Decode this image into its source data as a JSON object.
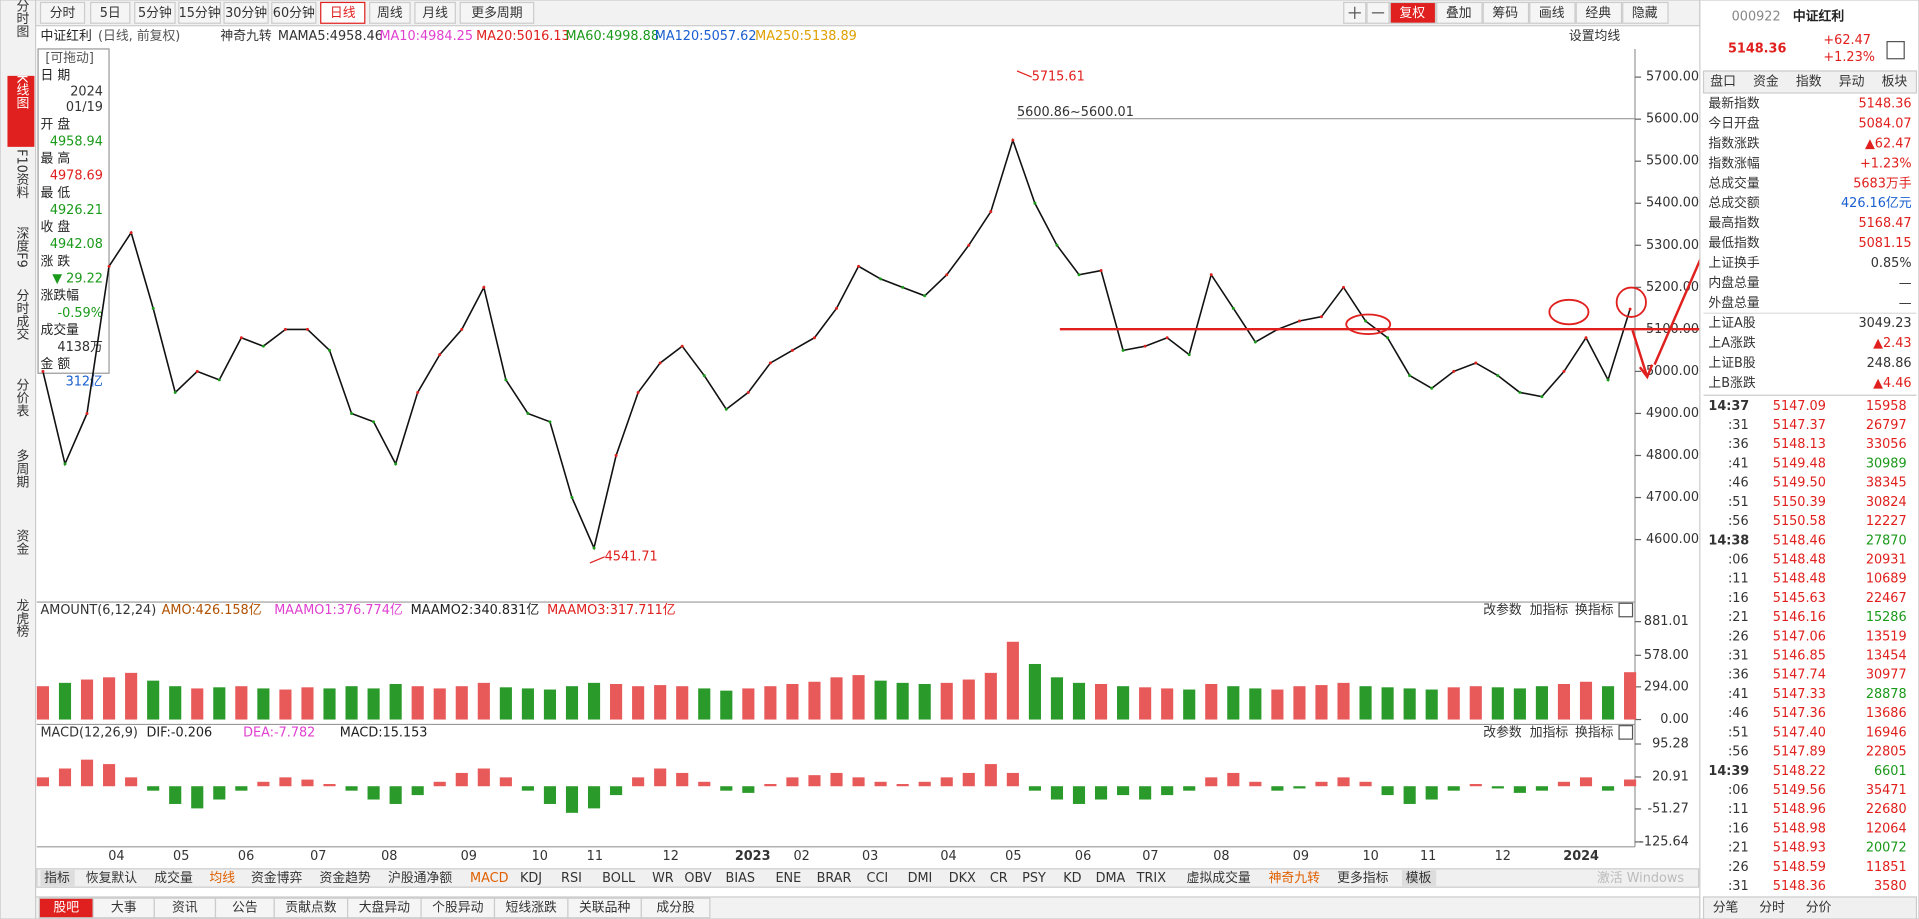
{
  "nav": [
    "分时图",
    "K线图",
    "F10资料",
    "深度F9",
    "分时成交",
    "分价表",
    "多周期",
    "资金",
    "龙虎榜"
  ],
  "periods": [
    "分时",
    "5日",
    "5分钟",
    "15分钟",
    "30分钟",
    "60分钟",
    "日线",
    "周线",
    "月线",
    "更多周期"
  ],
  "tools": [
    "复权",
    "叠加",
    "筹码",
    "画线",
    "经典",
    "隐藏"
  ],
  "legend": {
    "name": "中证红利",
    "mode": "(日线, 前复权)",
    "nine": "神奇九转",
    "ma": "MA",
    "items": [
      "MA5:4958.46",
      "MA10:4984.25",
      "MA20:5016.13",
      "MA60:4998.88",
      "MA120:5057.62",
      "MA250:5138.89"
    ],
    "setting": "设置均线"
  },
  "info": {
    "drag": "[可拖动]",
    "rows": [
      [
        "日  期",
        "2024",
        "01/19"
      ],
      [
        "开  盘",
        "4958.94"
      ],
      [
        "最  高",
        "4978.69"
      ],
      [
        "最  低",
        "4926.21"
      ],
      [
        "收  盘",
        "4942.08"
      ],
      [
        "涨  跌",
        "▼ 29.22"
      ],
      [
        "涨跌幅",
        "-0.59%"
      ],
      [
        "成交量",
        "4138万"
      ],
      [
        "金  额",
        "312亿"
      ]
    ]
  },
  "main_chart": {
    "type": "line",
    "ylim": [
      4463,
      5767
    ],
    "yticks": [
      {
        "value": 5700,
        "label": "5700.00"
      },
      {
        "value": 5600,
        "label": "5600.00"
      },
      {
        "value": 5500,
        "label": "5500.00"
      },
      {
        "value": 5400,
        "label": "5400.00"
      },
      {
        "value": 5300,
        "label": "5300.00"
      },
      {
        "value": 5200,
        "label": "5200.00"
      },
      {
        "value": 5100,
        "label": "5100.00"
      },
      {
        "value": 5000,
        "label": "5000.00"
      },
      {
        "value": 4900,
        "label": "4900.00"
      },
      {
        "value": 4800,
        "label": "4800.00"
      },
      {
        "value": 4700,
        "label": "4700.00"
      },
      {
        "value": 4600,
        "label": "4600.00"
      }
    ],
    "values": [
      5000,
      4780,
      4900,
      5250,
      5330,
      5150,
      4950,
      5000,
      4980,
      5080,
      5060,
      5100,
      5100,
      5050,
      4900,
      4880,
      4780,
      4950,
      5040,
      5100,
      5200,
      4980,
      4900,
      4880,
      4700,
      4580,
      4800,
      4950,
      5020,
      5060,
      4990,
      4910,
      4950,
      5020,
      5050,
      5080,
      5150,
      5250,
      5220,
      5200,
      5180,
      5230,
      5300,
      5380,
      5550,
      5400,
      5300,
      5230,
      5240,
      5050,
      5060,
      5080,
      5040,
      5230,
      5150,
      5070,
      5100,
      5120,
      5130,
      5200,
      5120,
      5080,
      4990,
      4960,
      5000,
      5020,
      4990,
      4950,
      4940,
      5000,
      5080,
      4980,
      5148.36
    ],
    "annotations": {
      "high": "5715.61",
      "low": "4541.71",
      "range": "5600.86~5600.01"
    }
  },
  "x_labels": [
    "04",
    "05",
    "06",
    "07",
    "08",
    "09",
    "10",
    "11",
    "12",
    "2023",
    "02",
    "03",
    "04",
    "05",
    "06",
    "07",
    "08",
    "09",
    "10",
    "11",
    "12",
    "2024"
  ],
  "volume_chart": {
    "type": "bar",
    "title": "AMOUNT(6,12,24)",
    "items": [
      "AMO:426.158亿",
      "MAAMO1:376.774亿",
      "MAAMO2:340.831亿",
      "MAAMO3:317.711亿"
    ],
    "ylim": [
      0,
      881.01
    ],
    "yticks": [
      881.01,
      {
        "value": 578,
        "label": "578.00"
      },
      {
        "value": 294,
        "label": "294.00"
      },
      {
        "value": 0,
        "label": "0.00"
      }
    ],
    "values": [
      300,
      330,
      360,
      380,
      420,
      350,
      300,
      280,
      290,
      300,
      280,
      270,
      290,
      280,
      300,
      280,
      320,
      300,
      280,
      300,
      330,
      290,
      280,
      270,
      300,
      330,
      320,
      300,
      310,
      300,
      280,
      260,
      280,
      300,
      320,
      340,
      380,
      400,
      350,
      330,
      320,
      330,
      360,
      420,
      700,
      500,
      380,
      330,
      320,
      300,
      290,
      280,
      270,
      320,
      300,
      280,
      270,
      300,
      310,
      330,
      300,
      290,
      280,
      270,
      290,
      300,
      290,
      280,
      300,
      320,
      340,
      300,
      426.158
    ]
  },
  "macd_chart": {
    "type": "bar",
    "title": "MACD(12,26,9)",
    "items": [
      "DIF:-0.206",
      "DEA:-7.782",
      "MACD:15.153"
    ],
    "ylim": [
      -125.64,
      95.28
    ],
    "yticks": [
      95.28,
      20.91,
      -51.27,
      -125.64
    ],
    "values": [
      20,
      40,
      60,
      50,
      20,
      -10,
      -40,
      -50,
      -30,
      -10,
      10,
      20,
      15,
      5,
      -10,
      -30,
      -40,
      -20,
      10,
      30,
      40,
      20,
      -10,
      -40,
      -60,
      -50,
      -20,
      20,
      40,
      30,
      10,
      -10,
      -15,
      5,
      20,
      25,
      30,
      20,
      10,
      5,
      10,
      20,
      30,
      50,
      30,
      -10,
      -30,
      -40,
      -30,
      -20,
      -30,
      -20,
      -10,
      20,
      30,
      10,
      -10,
      -5,
      10,
      20,
      10,
      -20,
      -40,
      -30,
      -10,
      5,
      -5,
      -15,
      -10,
      10,
      20,
      -10,
      15.153
    ]
  },
  "panel_buttons": [
    "改参数",
    "加指标",
    "换指标"
  ],
  "indicator_tabs": [
    "指标",
    "恢复默认",
    "成交量",
    "均线",
    "资金博弈",
    "资金趋势",
    "沪股通净额",
    "MACD",
    "KDJ",
    "RSI",
    "BOLL",
    "WR",
    "OBV",
    "BIAS",
    "ENE",
    "BRAR",
    "CCI",
    "DMI",
    "DKX",
    "CR",
    "PSY",
    "KD",
    "DMA",
    "TRIX",
    "虚拟成交量",
    "神奇九转",
    "更多指标",
    "模板"
  ],
  "bottom_tabs": [
    "股吧",
    "大事",
    "资讯",
    "公告",
    "贡献点数",
    "大盘异动",
    "个股异动",
    "短线涨跌",
    "关联品种",
    "成分股"
  ],
  "quote": {
    "code": "000922",
    "name": "中证红利",
    "price": "5148.36",
    "change": "+62.47",
    "pct": "+1.23%",
    "tabs": [
      "盘口",
      "资金",
      "指数",
      "异动",
      "板块"
    ],
    "rows": [
      [
        "最新指数",
        "5148.36"
      ],
      [
        "今日开盘",
        "5084.07"
      ],
      [
        "指数涨跌",
        "▲62.47"
      ],
      [
        "指数涨幅",
        "+1.23%"
      ],
      [
        "总成交量",
        "5683万手"
      ],
      [
        "总成交额",
        "426.16亿元"
      ],
      [
        "最高指数",
        "5168.47"
      ],
      [
        "最低指数",
        "5081.15"
      ],
      [
        "上证换手",
        "0.85%"
      ],
      [
        "内盘总量",
        "—"
      ],
      [
        "外盘总量",
        "—"
      ],
      [
        "上证A股",
        "3049.23"
      ],
      [
        "上A涨跌",
        "▲2.43"
      ],
      [
        "上证B股",
        "248.86"
      ],
      [
        "上B涨跌",
        "▲4.46"
      ]
    ],
    "ticks": [
      [
        "14:37",
        "5147.09",
        "15958"
      ],
      [
        ":31",
        "5147.37",
        "26797"
      ],
      [
        ":36",
        "5148.13",
        "33056"
      ],
      [
        ":41",
        "5149.48",
        "30989"
      ],
      [
        ":46",
        "5149.50",
        "38345"
      ],
      [
        ":51",
        "5150.39",
        "30824"
      ],
      [
        ":56",
        "5150.58",
        "12227"
      ],
      [
        "14:38",
        "5148.46",
        "27870"
      ],
      [
        ":06",
        "5148.48",
        "20931"
      ],
      [
        ":11",
        "5148.48",
        "10689"
      ],
      [
        ":16",
        "5145.63",
        "22467"
      ],
      [
        ":21",
        "5146.16",
        "15286"
      ],
      [
        ":26",
        "5147.06",
        "13519"
      ],
      [
        ":31",
        "5146.85",
        "13454"
      ],
      [
        ":36",
        "5147.74",
        "30977"
      ],
      [
        ":41",
        "5147.33",
        "28878"
      ],
      [
        ":46",
        "5147.36",
        "13686"
      ],
      [
        ":51",
        "5147.40",
        "16946"
      ],
      [
        ":56",
        "5147.89",
        "22805"
      ],
      [
        "14:39",
        "5148.22",
        "6601"
      ],
      [
        ":06",
        "5149.56",
        "35471"
      ],
      [
        ":11",
        "5148.96",
        "22680"
      ],
      [
        ":16",
        "5148.98",
        "12064"
      ],
      [
        ":21",
        "5148.93",
        "20072"
      ],
      [
        ":26",
        "5148.59",
        "11851"
      ],
      [
        ":31",
        "5148.36",
        "3580"
      ]
    ],
    "bottom_tabs": [
      "分笔",
      "分时",
      "分价"
    ]
  },
  "watermark": "激活 Windows"
}
